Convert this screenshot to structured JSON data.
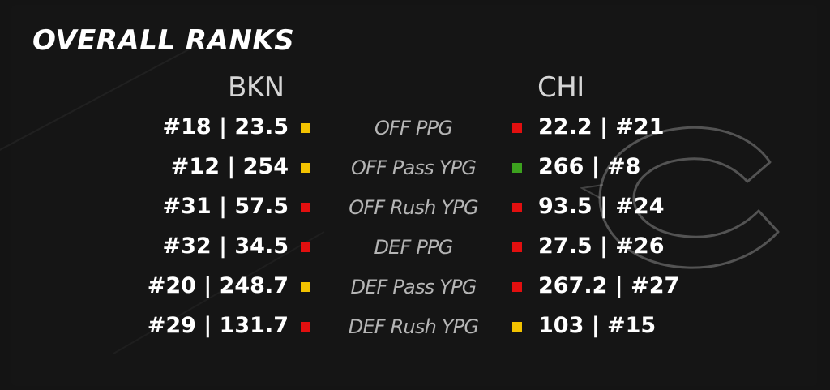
{
  "title": "OVERALL RANKS",
  "teams": {
    "left": "BKN",
    "right": "CHI"
  },
  "colors": {
    "red": "#e20f0f",
    "yellow": "#f2c200",
    "green": "#3ca11e",
    "background": "#151515"
  },
  "logo_icon": "chicago-bears-c-logo",
  "rows": [
    {
      "stat": "OFF PPG",
      "left": {
        "text": "#18 | 23.5",
        "rank": 18,
        "value": 23.5,
        "indicator": "yellow"
      },
      "right": {
        "text": "22.2 | #21",
        "rank": 21,
        "value": 22.2,
        "indicator": "red"
      }
    },
    {
      "stat": "OFF Pass YPG",
      "left": {
        "text": "#12 | 254",
        "rank": 12,
        "value": 254,
        "indicator": "yellow"
      },
      "right": {
        "text": "266 | #8",
        "rank": 8,
        "value": 266,
        "indicator": "green"
      }
    },
    {
      "stat": "OFF Rush YPG",
      "left": {
        "text": "#31 | 57.5",
        "rank": 31,
        "value": 57.5,
        "indicator": "red"
      },
      "right": {
        "text": "93.5 | #24",
        "rank": 24,
        "value": 93.5,
        "indicator": "red"
      }
    },
    {
      "stat": "DEF PPG",
      "left": {
        "text": "#32 | 34.5",
        "rank": 32,
        "value": 34.5,
        "indicator": "red"
      },
      "right": {
        "text": "27.5 | #26",
        "rank": 26,
        "value": 27.5,
        "indicator": "red"
      }
    },
    {
      "stat": "DEF Pass YPG",
      "left": {
        "text": "#20 | 248.7",
        "rank": 20,
        "value": 248.7,
        "indicator": "yellow"
      },
      "right": {
        "text": "267.2 | #27",
        "rank": 27,
        "value": 267.2,
        "indicator": "red"
      }
    },
    {
      "stat": "DEF Rush YPG",
      "left": {
        "text": "#29 | 131.7",
        "rank": 29,
        "value": 131.7,
        "indicator": "red"
      },
      "right": {
        "text": "103 | #15",
        "rank": 15,
        "value": 103,
        "indicator": "yellow"
      }
    }
  ]
}
